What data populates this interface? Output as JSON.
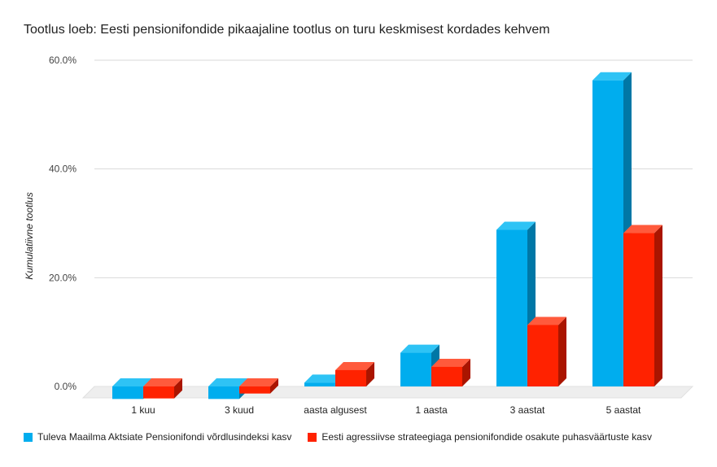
{
  "chart_data": {
    "type": "bar",
    "title": "Tootlus loeb: Eesti pensionifondide pikaajaline tootlus on turu keskmisest kordades kehvem",
    "xlabel": "",
    "ylabel": "Kumulatiivne tootlus",
    "categories": [
      "1 kuu",
      "3 kuud",
      "aasta algusest",
      "1 aasta",
      "3 aastat",
      "5 aastat"
    ],
    "series": [
      {
        "name": "Tuleva Maailma Aktsiate Pensionifondi võrdlusindeksi kasv",
        "color": "#00ADEE",
        "side_color": "#0077A6",
        "top_color": "#2EC3F5",
        "values": [
          -2.3,
          -2.3,
          0.7,
          6.2,
          28.8,
          56.3
        ]
      },
      {
        "name": "Eesti agressiivse strateegiaga pensionifondide osakute puhasväärtuste kasv",
        "color": "#FF2200",
        "side_color": "#AA1500",
        "top_color": "#FF5A3C",
        "values": [
          -2.2,
          -1.3,
          3.0,
          3.6,
          11.3,
          28.2
        ]
      }
    ],
    "yticks": [
      "0.0%",
      "20.0%",
      "40.0%",
      "60.0%"
    ],
    "ylim": [
      0,
      60
    ],
    "grid": true,
    "legend_position": "bottom"
  }
}
